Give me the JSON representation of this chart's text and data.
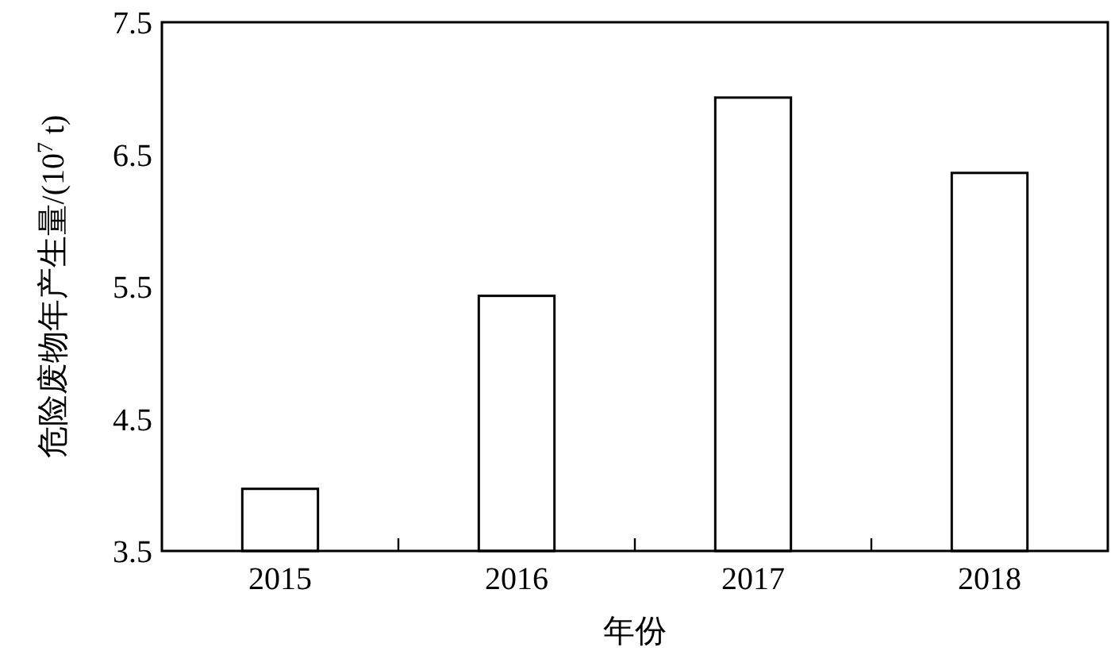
{
  "chart_data": {
    "type": "bar",
    "xlabel": "年份",
    "ylabel": "危险废物年产生量/(10$^{7}$ t)",
    "categories": [
      "2015",
      "2016",
      "2017",
      "2018"
    ],
    "values": [
      3.97,
      5.43,
      6.93,
      6.36
    ],
    "color": "#ffffff",
    "ylim": [
      3.5,
      7.5
    ],
    "yticks": [
      3.5,
      4.5,
      5.5,
      6.5,
      7.5
    ],
    "grid": false
  }
}
